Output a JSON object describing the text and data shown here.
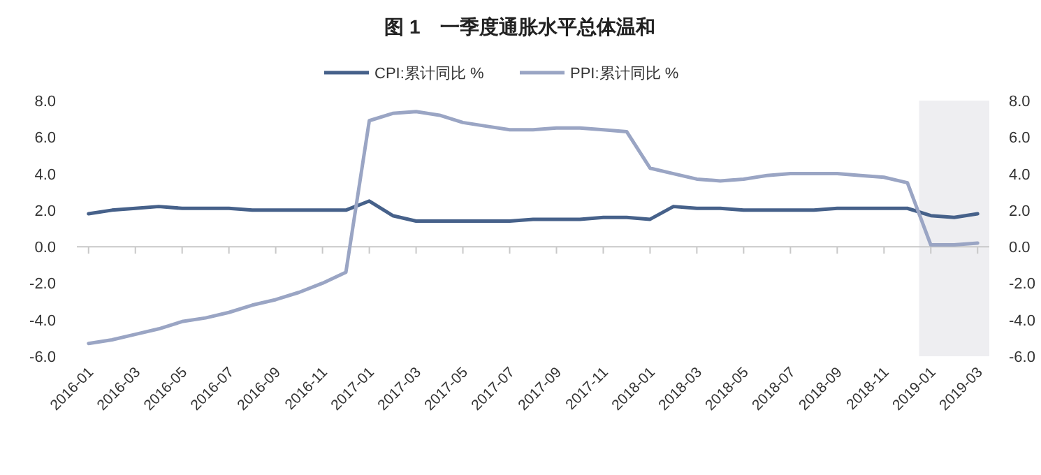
{
  "chart_data": {
    "type": "line",
    "title": "图 1　一季度通胀水平总体温和",
    "categories": [
      "2016-01",
      null,
      "2016-03",
      null,
      "2016-05",
      null,
      "2016-07",
      null,
      "2016-09",
      null,
      "2016-11",
      null,
      "2017-01",
      null,
      "2017-03",
      null,
      "2017-05",
      null,
      "2017-07",
      null,
      "2017-09",
      null,
      "2017-11",
      null,
      "2018-01",
      null,
      "2018-03",
      null,
      "2018-05",
      null,
      "2018-07",
      null,
      "2018-09",
      null,
      "2018-11",
      null,
      "2019-01",
      null,
      "2019-03"
    ],
    "series": [
      {
        "name": "CPI:累计同比 %",
        "color": "#46618a",
        "values": [
          1.8,
          2.0,
          2.1,
          2.2,
          2.1,
          2.1,
          2.1,
          2.0,
          2.0,
          2.0,
          2.0,
          2.0,
          2.5,
          1.7,
          1.4,
          1.4,
          1.4,
          1.4,
          1.4,
          1.5,
          1.5,
          1.5,
          1.6,
          1.6,
          1.5,
          2.2,
          2.1,
          2.1,
          2.0,
          2.0,
          2.0,
          2.0,
          2.1,
          2.1,
          2.1,
          2.1,
          1.7,
          1.6,
          1.8
        ]
      },
      {
        "name": "PPI:累计同比 %",
        "color": "#9aa5c4",
        "values": [
          -5.3,
          -5.1,
          -4.8,
          -4.5,
          -4.1,
          -3.9,
          -3.6,
          -3.2,
          -2.9,
          -2.5,
          -2.0,
          -1.4,
          6.9,
          7.3,
          7.4,
          7.2,
          6.8,
          6.6,
          6.4,
          6.4,
          6.5,
          6.5,
          6.4,
          6.3,
          4.3,
          4.0,
          3.7,
          3.6,
          3.7,
          3.9,
          4.0,
          4.0,
          4.0,
          3.9,
          3.8,
          3.5,
          0.1,
          0.1,
          0.2
        ]
      }
    ],
    "ylim": [
      -6,
      8
    ],
    "yticks": [
      {
        "value": -6,
        "label": "-6.0"
      },
      {
        "value": -4,
        "label": "-4.0"
      },
      {
        "value": -2,
        "label": "-2.0"
      },
      {
        "value": 0,
        "label": "0.0"
      },
      {
        "value": 2,
        "label": "2.0"
      },
      {
        "value": 4,
        "label": "4.0"
      },
      {
        "value": 6,
        "label": "6.0"
      },
      {
        "value": 8,
        "label": "8.0"
      }
    ],
    "y2lim": [
      -6,
      8
    ],
    "y2ticks": [
      {
        "value": -6,
        "label": "-6.0"
      },
      {
        "value": -4,
        "label": "-4.0"
      },
      {
        "value": -2,
        "label": "-2.0"
      },
      {
        "value": 0,
        "label": "0.0"
      },
      {
        "value": 2,
        "label": "2.0"
      },
      {
        "value": 4,
        "label": "4.0"
      },
      {
        "value": 6,
        "label": "6.0"
      },
      {
        "value": 8,
        "label": "8.0"
      }
    ],
    "bands": [
      {
        "axis": "x",
        "from": "2019-01",
        "to": "2019-03",
        "color": "#eeeef1"
      }
    ],
    "legend": "top",
    "marker": "none",
    "line_style": "solid"
  }
}
